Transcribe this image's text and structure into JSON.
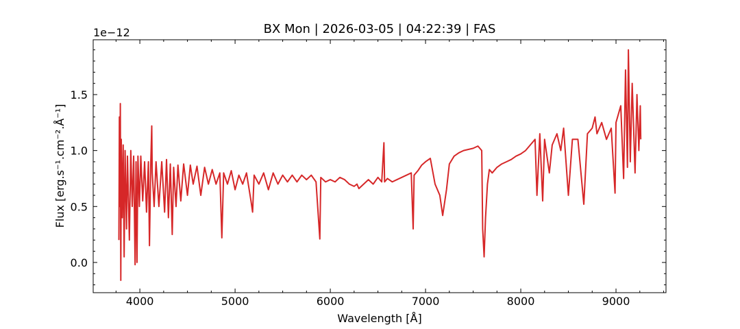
{
  "chart_data": {
    "type": "line",
    "title": "BX Mon | 2026-03-05 | 04:22:39 | FAS",
    "x_label": "Wavelength [Å]",
    "y_label": "Flux [erg.s⁻¹.cm⁻².Å⁻¹]",
    "offset_text": "1e−12",
    "xlim": [
      3510,
      9525
    ],
    "ylim": [
      -0.27,
      1.99
    ],
    "xticks": [
      4000,
      5000,
      6000,
      7000,
      8000,
      9000
    ],
    "yticks": [
      {
        "value": 0,
        "label": "0.0"
      },
      0.5,
      {
        "value": 1,
        "label": "1.0"
      },
      1.5
    ],
    "xminorticks": [
      3750,
      4250,
      4500,
      4750,
      5250,
      5500,
      5750,
      6250,
      6500,
      6750,
      7250,
      7500,
      7750,
      8250,
      8500,
      8750,
      9250,
      9500
    ],
    "yminorticks": [
      -0.2,
      -0.1,
      0.1,
      0.2,
      0.3,
      0.4,
      0.6,
      0.7,
      0.8,
      0.9,
      1.1,
      1.2,
      1.3,
      1.4,
      1.6,
      1.7,
      1.8,
      1.9
    ],
    "ticks_direction": "in",
    "ticks_all_sides": true,
    "color": "#d62728",
    "x": [
      3780,
      3785,
      3790,
      3795,
      3800,
      3805,
      3815,
      3825,
      3835,
      3845,
      3860,
      3870,
      3890,
      3905,
      3920,
      3935,
      3950,
      3960,
      3970,
      3980,
      3995,
      4010,
      4030,
      4050,
      4070,
      4090,
      4101,
      4115,
      4125,
      4130,
      4150,
      4170,
      4200,
      4230,
      4260,
      4280,
      4300,
      4320,
      4340,
      4355,
      4380,
      4400,
      4430,
      4460,
      4500,
      4530,
      4560,
      4600,
      4640,
      4680,
      4720,
      4760,
      4800,
      4840,
      4861,
      4880,
      4920,
      4960,
      5000,
      5040,
      5080,
      5120,
      5167,
      5184,
      5200,
      5250,
      5300,
      5350,
      5400,
      5450,
      5500,
      5550,
      5600,
      5650,
      5700,
      5750,
      5800,
      5850,
      5890,
      5900,
      5950,
      6000,
      6050,
      6100,
      6150,
      6200,
      6250,
      6280,
      6300,
      6350,
      6400,
      6450,
      6500,
      6540,
      6563,
      6570,
      6600,
      6650,
      6700,
      6750,
      6800,
      6850,
      6870,
      6880,
      6920,
      6960,
      7000,
      7050,
      7100,
      7150,
      7180,
      7220,
      7250,
      7300,
      7350,
      7400,
      7450,
      7500,
      7550,
      7590,
      7600,
      7615,
      7630,
      7650,
      7670,
      7700,
      7750,
      7800,
      7850,
      7900,
      7950,
      8000,
      8050,
      8100,
      8150,
      8170,
      8200,
      8230,
      8250,
      8300,
      8330,
      8380,
      8420,
      8450,
      8500,
      8542,
      8600,
      8662,
      8700,
      8750,
      8780,
      8800,
      8850,
      8900,
      8950,
      8990,
      9000,
      9050,
      9080,
      9100,
      9120,
      9130,
      9150,
      9170,
      9200,
      9220,
      9240,
      9255,
      9260
    ],
    "values": [
      0.2,
      1.3,
      0.5,
      1.42,
      -0.16,
      1.1,
      0.4,
      1.05,
      0.05,
      1.0,
      0.3,
      0.95,
      0.2,
      1.0,
      0.5,
      0.95,
      -0.02,
      0.9,
      0.0,
      0.95,
      0.5,
      0.95,
      0.55,
      0.9,
      0.45,
      0.9,
      0.15,
      0.9,
      1.22,
      0.8,
      0.5,
      0.9,
      0.5,
      0.9,
      0.45,
      0.92,
      0.4,
      0.88,
      0.25,
      0.85,
      0.5,
      0.87,
      0.55,
      0.88,
      0.6,
      0.87,
      0.7,
      0.86,
      0.6,
      0.85,
      0.7,
      0.83,
      0.7,
      0.8,
      0.22,
      0.8,
      0.7,
      0.82,
      0.65,
      0.78,
      0.7,
      0.8,
      0.55,
      0.45,
      0.78,
      0.7,
      0.8,
      0.65,
      0.8,
      0.7,
      0.78,
      0.72,
      0.78,
      0.72,
      0.78,
      0.74,
      0.78,
      0.72,
      0.21,
      0.76,
      0.72,
      0.74,
      0.72,
      0.76,
      0.74,
      0.7,
      0.68,
      0.7,
      0.66,
      0.7,
      0.74,
      0.7,
      0.76,
      0.72,
      1.07,
      0.72,
      0.75,
      0.72,
      0.74,
      0.76,
      0.78,
      0.8,
      0.3,
      0.78,
      0.82,
      0.87,
      0.9,
      0.93,
      0.7,
      0.6,
      0.42,
      0.65,
      0.88,
      0.95,
      0.98,
      1.0,
      1.01,
      1.02,
      1.04,
      1.0,
      0.3,
      0.05,
      0.4,
      0.7,
      0.83,
      0.8,
      0.85,
      0.88,
      0.9,
      0.92,
      0.95,
      0.97,
      1.0,
      1.05,
      1.1,
      0.6,
      1.15,
      0.55,
      1.1,
      0.8,
      1.05,
      1.15,
      1.0,
      1.2,
      0.6,
      1.1,
      1.1,
      0.52,
      1.15,
      1.2,
      1.3,
      1.15,
      1.25,
      1.1,
      1.2,
      0.62,
      1.25,
      1.4,
      0.75,
      1.72,
      0.85,
      1.9,
      0.9,
      1.6,
      0.8,
      1.5,
      1.0,
      1.4,
      1.1
    ]
  }
}
